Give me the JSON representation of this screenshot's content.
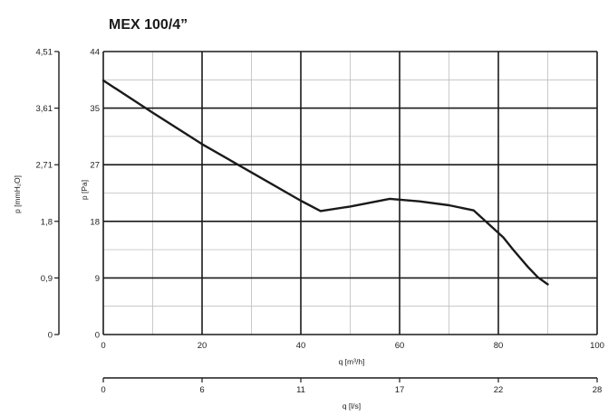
{
  "chart_data": {
    "type": "line",
    "title": "MEX 100/4”",
    "xlabel": "q [m³/h]",
    "x2label": "q [l/s]",
    "ylabel": "p [Pa]",
    "y2label": "p [mmH₂O]",
    "xlim": [
      0,
      100
    ],
    "ylim": [
      0,
      44
    ],
    "x_ticks": [
      "0",
      "20",
      "40",
      "60",
      "80",
      "100"
    ],
    "x2_ticks": [
      "0",
      "6",
      "11",
      "17",
      "22",
      "28"
    ],
    "y_ticks": [
      "0",
      "9",
      "18",
      "27",
      "35",
      "44"
    ],
    "y2_ticks": [
      "0",
      "0,9",
      "1,8",
      "2,71",
      "3,61",
      "4,51"
    ],
    "grid": true,
    "series": [
      {
        "x": [
          0,
          10,
          20,
          30,
          40,
          44,
          50,
          58,
          64,
          70,
          75,
          78,
          81,
          83,
          86,
          88,
          90
        ],
        "y": [
          39.5,
          34.5,
          29.6,
          25.2,
          20.8,
          19.2,
          19.9,
          21.1,
          20.7,
          20.1,
          19.3,
          17.2,
          15.1,
          13.2,
          10.5,
          8.9,
          7.8
        ]
      }
    ]
  }
}
